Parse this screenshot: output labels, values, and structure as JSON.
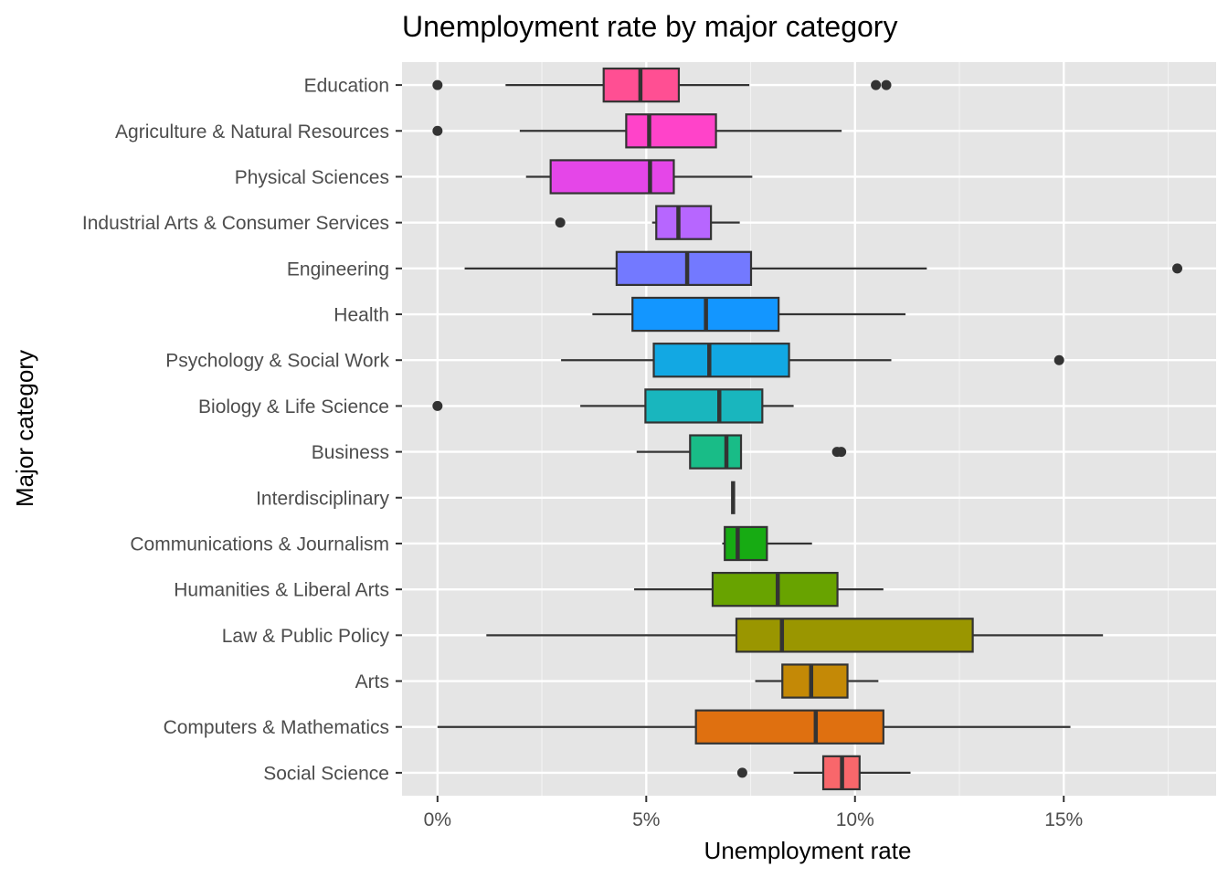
{
  "chart_data": {
    "type": "boxplot",
    "orientation": "horizontal",
    "title": "Unemployment rate by major category",
    "xlabel": "Unemployment rate",
    "ylabel": "Major category",
    "xlim": [
      -0.0085,
      0.1865
    ],
    "x_ticks": [
      0,
      0.05,
      0.1,
      0.15
    ],
    "x_tick_labels": [
      "0%",
      "5%",
      "10%",
      "15%"
    ],
    "grid": true,
    "legend": "none",
    "series": [
      {
        "category": "Education",
        "whisker_low": 0.0163,
        "q1": 0.0398,
        "median": 0.0486,
        "q3": 0.0578,
        "whisker_high": 0.0747,
        "outliers": [
          0.0,
          0.105,
          0.1075
        ],
        "color": "#FF4F93"
      },
      {
        "category": "Agriculture & Natural Resources",
        "whisker_low": 0.0197,
        "q1": 0.0452,
        "median": 0.0507,
        "q3": 0.0667,
        "whisker_high": 0.0968,
        "outliers": [
          0.0
        ],
        "color": "#FF43C9"
      },
      {
        "category": "Physical Sciences",
        "whisker_low": 0.0212,
        "q1": 0.0271,
        "median": 0.0509,
        "q3": 0.0566,
        "whisker_high": 0.0754,
        "outliers": [],
        "color": "#E546E8"
      },
      {
        "category": "Industrial Arts & Consumer Services",
        "whisker_low": 0.0514,
        "q1": 0.0524,
        "median": 0.0577,
        "q3": 0.0655,
        "whisker_high": 0.0724,
        "outliers": [
          0.0294
        ],
        "color": "#B766FF"
      },
      {
        "category": "Engineering",
        "whisker_low": 0.0065,
        "q1": 0.0429,
        "median": 0.0598,
        "q3": 0.0751,
        "whisker_high": 0.1172,
        "outliers": [
          0.1772
        ],
        "color": "#7379FF"
      },
      {
        "category": "Health",
        "whisker_low": 0.0371,
        "q1": 0.0467,
        "median": 0.0643,
        "q3": 0.0817,
        "whisker_high": 0.1121,
        "outliers": [],
        "color": "#1396FF"
      },
      {
        "category": "Psychology & Social Work",
        "whisker_low": 0.0296,
        "q1": 0.0518,
        "median": 0.0651,
        "q3": 0.0842,
        "whisker_high": 0.1087,
        "outliers": [
          0.1489
        ],
        "color": "#12A8E3"
      },
      {
        "category": "Biology & Life Science",
        "whisker_low": 0.0342,
        "q1": 0.0498,
        "median": 0.0675,
        "q3": 0.0778,
        "whisker_high": 0.0853,
        "outliers": [
          0.0
        ],
        "color": "#19B6BE"
      },
      {
        "category": "Business",
        "whisker_low": 0.0477,
        "q1": 0.0605,
        "median": 0.0692,
        "q3": 0.0727,
        "whisker_high": 0.0727,
        "outliers": [
          0.0957,
          0.0967
        ],
        "color": "#19BC87"
      },
      {
        "category": "Interdisciplinary",
        "whisker_low": 0.0708,
        "q1": 0.0708,
        "median": 0.0708,
        "q3": 0.0708,
        "whisker_high": 0.0708,
        "outliers": [],
        "color": "#1FB849"
      },
      {
        "category": "Communications & Journalism",
        "whisker_low": 0.0682,
        "q1": 0.0688,
        "median": 0.0719,
        "q3": 0.0789,
        "whisker_high": 0.0897,
        "outliers": [],
        "color": "#17AB13"
      },
      {
        "category": "Humanities & Liberal Arts",
        "whisker_low": 0.0471,
        "q1": 0.0659,
        "median": 0.0815,
        "q3": 0.0958,
        "whisker_high": 0.1068,
        "outliers": [],
        "color": "#68A300"
      },
      {
        "category": "Law & Public Policy",
        "whisker_low": 0.0117,
        "q1": 0.0716,
        "median": 0.0825,
        "q3": 0.1282,
        "whisker_high": 0.1594,
        "outliers": [],
        "color": "#9A9600"
      },
      {
        "category": "Arts",
        "whisker_low": 0.0761,
        "q1": 0.0826,
        "median": 0.0895,
        "q3": 0.0982,
        "whisker_high": 0.1056,
        "outliers": [],
        "color": "#C48906"
      },
      {
        "category": "Computers & Mathematics",
        "whisker_low": 0.0,
        "q1": 0.0619,
        "median": 0.0906,
        "q3": 0.1068,
        "whisker_high": 0.1516,
        "outliers": [],
        "color": "#DF7010"
      },
      {
        "category": "Social Science",
        "whisker_low": 0.0853,
        "q1": 0.0924,
        "median": 0.0969,
        "q3": 0.1011,
        "whisker_high": 0.1133,
        "outliers": [
          0.073
        ],
        "color": "#F8676B"
      }
    ]
  }
}
